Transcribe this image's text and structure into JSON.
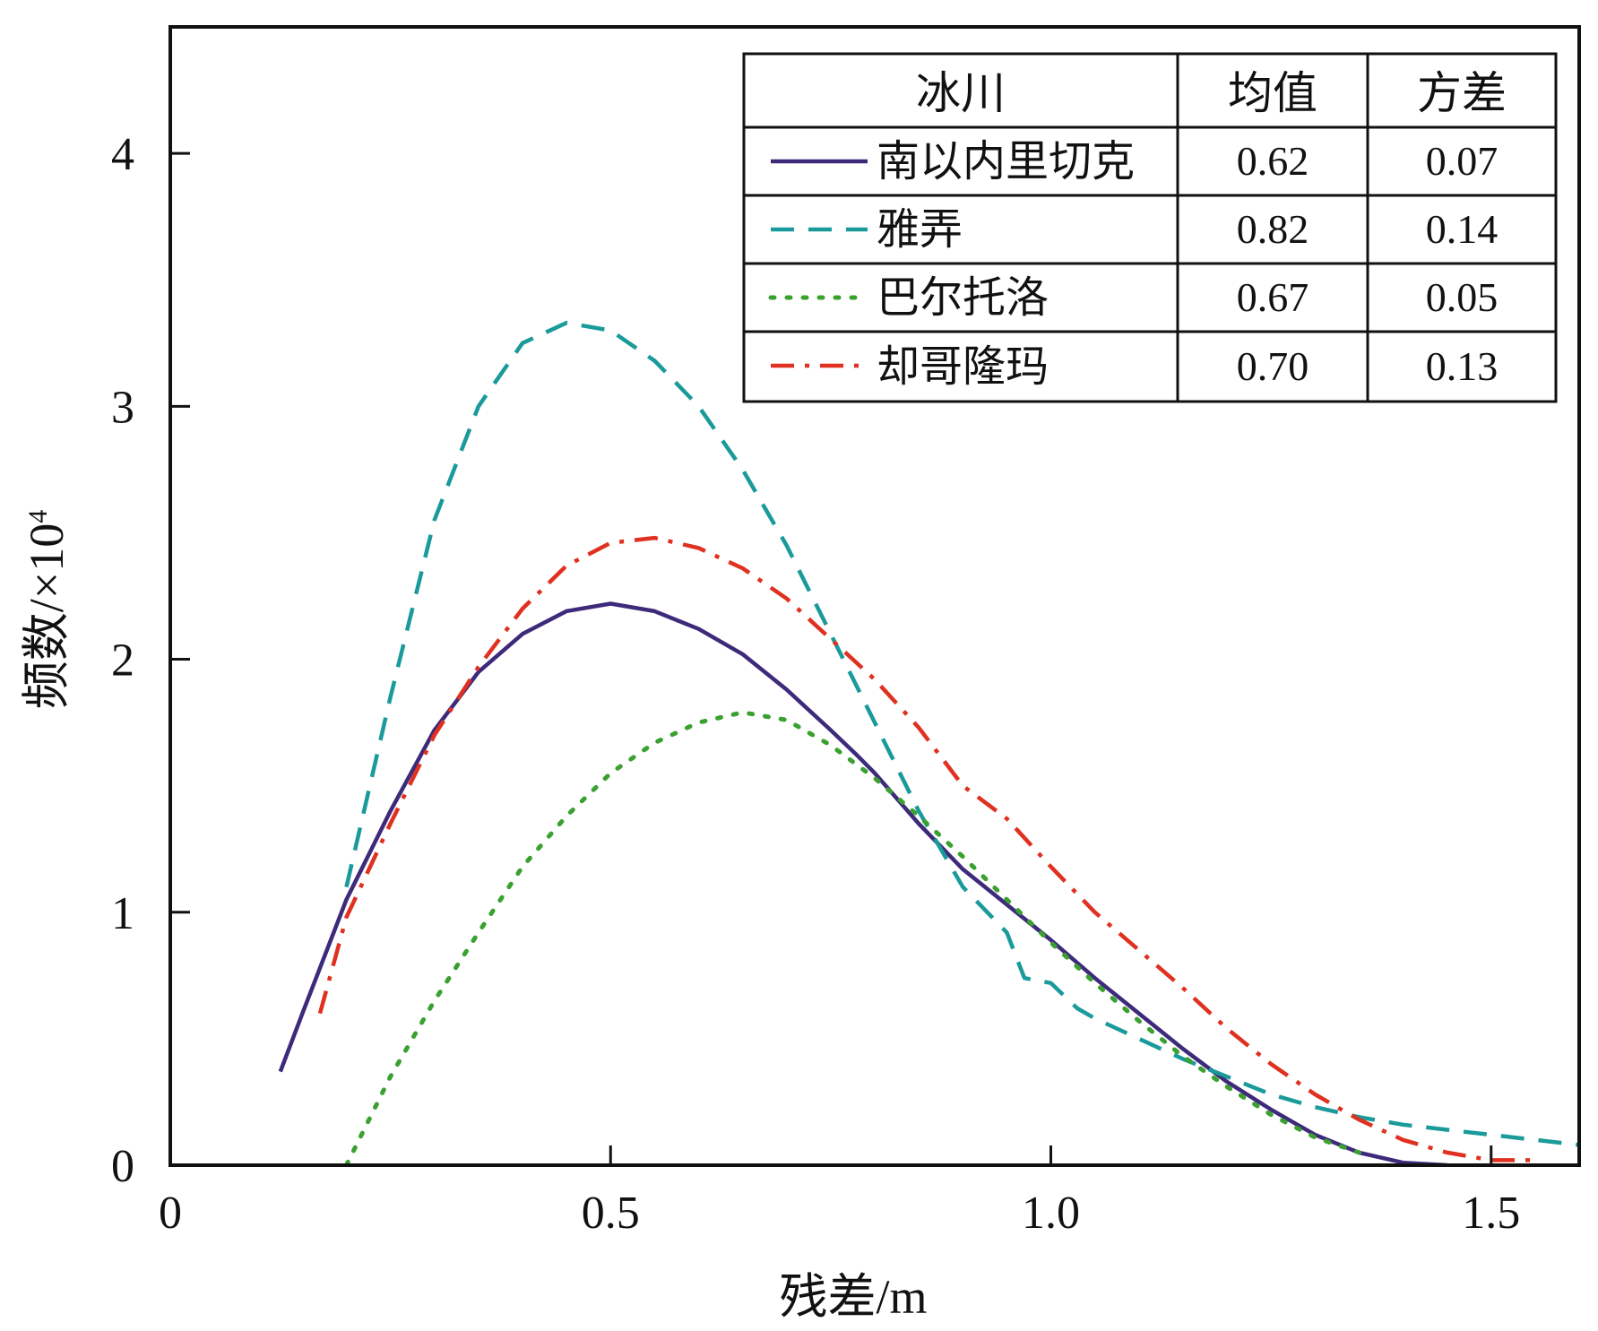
{
  "chart_data": {
    "type": "line",
    "xlabel_text": "残差",
    "xlabel_unit": "/m",
    "ylabel_text": "频数",
    "ylabel_unit": "/×10",
    "ylabel_exp": "4",
    "xlim": [
      0,
      1.6
    ],
    "ylim": [
      0,
      4.5
    ],
    "x_ticks": [
      {
        "value": 0,
        "label": "0"
      },
      {
        "value": 0.5,
        "label": "0.5"
      },
      {
        "value": 1.0,
        "label": "1.0"
      },
      {
        "value": 1.5,
        "label": "1.5"
      }
    ],
    "y_ticks": [
      {
        "value": 0,
        "label": "0"
      },
      {
        "value": 1,
        "label": "1"
      },
      {
        "value": 2,
        "label": "2"
      },
      {
        "value": 3,
        "label": "3"
      },
      {
        "value": 4,
        "label": "4"
      }
    ],
    "grid": false,
    "legend_table": {
      "placement": "top-right",
      "headers": [
        "冰川",
        "均值",
        "方差"
      ]
    },
    "series": [
      {
        "name": "南以内里切克",
        "mean": "0.62",
        "variance": "0.07",
        "color": "#3d2a7a",
        "dash": "solid",
        "points": [
          [
            0.125,
            0.37
          ],
          [
            0.15,
            0.6
          ],
          [
            0.2,
            1.05
          ],
          [
            0.25,
            1.4
          ],
          [
            0.3,
            1.72
          ],
          [
            0.35,
            1.95
          ],
          [
            0.4,
            2.1
          ],
          [
            0.45,
            2.19
          ],
          [
            0.5,
            2.22
          ],
          [
            0.55,
            2.19
          ],
          [
            0.6,
            2.12
          ],
          [
            0.65,
            2.02
          ],
          [
            0.7,
            1.88
          ],
          [
            0.75,
            1.72
          ],
          [
            0.78,
            1.62
          ],
          [
            0.8,
            1.55
          ],
          [
            0.85,
            1.35
          ],
          [
            0.9,
            1.17
          ],
          [
            0.95,
            1.03
          ],
          [
            1.0,
            0.89
          ],
          [
            1.05,
            0.74
          ],
          [
            1.1,
            0.6
          ],
          [
            1.15,
            0.46
          ],
          [
            1.2,
            0.33
          ],
          [
            1.25,
            0.22
          ],
          [
            1.3,
            0.12
          ],
          [
            1.35,
            0.05
          ],
          [
            1.4,
            0.01
          ],
          [
            1.45,
            0.0
          ]
        ]
      },
      {
        "name": "雅弄",
        "mean": "0.82",
        "variance": "0.14",
        "color": "#1a9a9a",
        "dash": "dashed",
        "points": [
          [
            0.2,
            1.1
          ],
          [
            0.25,
            1.85
          ],
          [
            0.3,
            2.55
          ],
          [
            0.35,
            3.0
          ],
          [
            0.4,
            3.25
          ],
          [
            0.45,
            3.33
          ],
          [
            0.5,
            3.3
          ],
          [
            0.55,
            3.18
          ],
          [
            0.6,
            3.0
          ],
          [
            0.65,
            2.75
          ],
          [
            0.7,
            2.45
          ],
          [
            0.75,
            2.1
          ],
          [
            0.8,
            1.75
          ],
          [
            0.85,
            1.4
          ],
          [
            0.9,
            1.1
          ],
          [
            0.95,
            0.92
          ],
          [
            0.97,
            0.74
          ],
          [
            1.0,
            0.72
          ],
          [
            1.03,
            0.62
          ],
          [
            1.05,
            0.58
          ],
          [
            1.1,
            0.5
          ],
          [
            1.15,
            0.42
          ],
          [
            1.2,
            0.35
          ],
          [
            1.25,
            0.28
          ],
          [
            1.3,
            0.23
          ],
          [
            1.35,
            0.19
          ],
          [
            1.4,
            0.16
          ],
          [
            1.45,
            0.14
          ],
          [
            1.5,
            0.12
          ],
          [
            1.6,
            0.08
          ]
        ]
      },
      {
        "name": "巴尔托洛",
        "mean": "0.67",
        "variance": "0.05",
        "color": "#3aa030",
        "dash": "dotted",
        "points": [
          [
            0.2,
            0.0
          ],
          [
            0.25,
            0.35
          ],
          [
            0.3,
            0.65
          ],
          [
            0.35,
            0.92
          ],
          [
            0.4,
            1.18
          ],
          [
            0.45,
            1.38
          ],
          [
            0.5,
            1.55
          ],
          [
            0.55,
            1.67
          ],
          [
            0.6,
            1.75
          ],
          [
            0.65,
            1.79
          ],
          [
            0.7,
            1.76
          ],
          [
            0.75,
            1.66
          ],
          [
            0.8,
            1.53
          ],
          [
            0.85,
            1.38
          ],
          [
            0.9,
            1.22
          ],
          [
            0.95,
            1.05
          ],
          [
            1.0,
            0.88
          ],
          [
            1.05,
            0.72
          ],
          [
            1.1,
            0.57
          ],
          [
            1.15,
            0.43
          ],
          [
            1.2,
            0.31
          ],
          [
            1.25,
            0.2
          ],
          [
            1.3,
            0.11
          ],
          [
            1.35,
            0.05
          ]
        ]
      },
      {
        "name": "却哥隆玛",
        "mean": "0.70",
        "variance": "0.13",
        "color": "#e03020",
        "dash": "dashdot",
        "points": [
          [
            0.17,
            0.6
          ],
          [
            0.2,
            0.98
          ],
          [
            0.25,
            1.35
          ],
          [
            0.3,
            1.7
          ],
          [
            0.35,
            1.97
          ],
          [
            0.4,
            2.2
          ],
          [
            0.45,
            2.37
          ],
          [
            0.5,
            2.46
          ],
          [
            0.55,
            2.48
          ],
          [
            0.6,
            2.44
          ],
          [
            0.65,
            2.36
          ],
          [
            0.7,
            2.24
          ],
          [
            0.75,
            2.08
          ],
          [
            0.8,
            1.92
          ],
          [
            0.85,
            1.73
          ],
          [
            0.9,
            1.5
          ],
          [
            0.95,
            1.37
          ],
          [
            1.0,
            1.18
          ],
          [
            1.05,
            1.0
          ],
          [
            1.1,
            0.85
          ],
          [
            1.15,
            0.7
          ],
          [
            1.2,
            0.54
          ],
          [
            1.25,
            0.4
          ],
          [
            1.3,
            0.28
          ],
          [
            1.35,
            0.18
          ],
          [
            1.4,
            0.1
          ],
          [
            1.45,
            0.05
          ],
          [
            1.5,
            0.02
          ],
          [
            1.55,
            0.02
          ]
        ]
      }
    ]
  }
}
